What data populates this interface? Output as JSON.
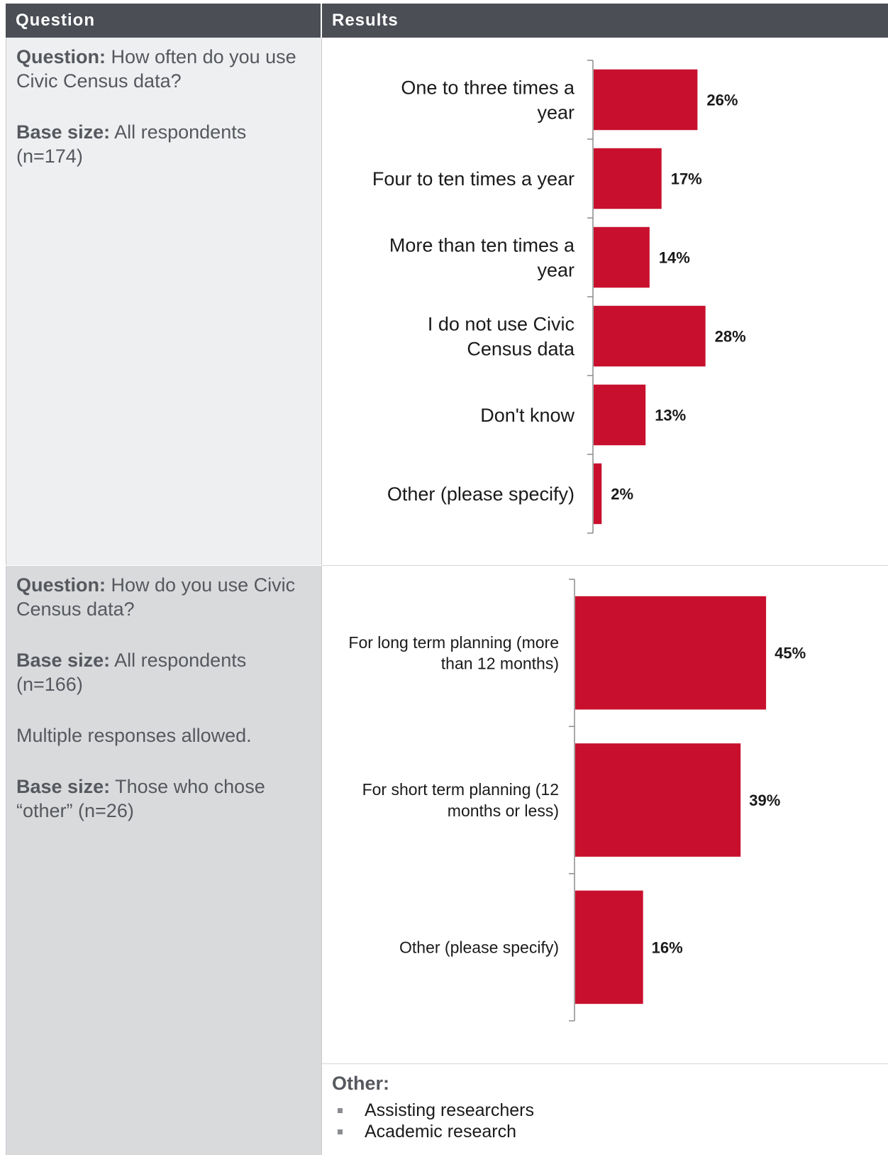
{
  "header": {
    "question_label": "Question",
    "results_label": "Results"
  },
  "rows": [
    {
      "question_prefix": "Question:",
      "question_text": "How often do you use Civic Census data?",
      "base_prefix": "Base size:",
      "base_text": "All respondents (n=174)"
    },
    {
      "question_prefix": "Question:",
      "question_text": "How do you use Civic Census data?",
      "base_prefix": "Base size:",
      "base_text": "All respondents (n=166)",
      "note": "Multiple responses allowed.",
      "base2_prefix": "Base size:",
      "base2_text": "Those who chose “other” (n=26)"
    }
  ],
  "chart_data": [
    {
      "type": "bar",
      "orientation": "horizontal",
      "categories": [
        "One to three times a year",
        "Four to ten times a year",
        "More than ten times a year",
        "I do not use Civic Census data",
        "Don't know",
        "Other (please specify)"
      ],
      "values": [
        26,
        17,
        14,
        28,
        13,
        2
      ],
      "value_labels": [
        "26%",
        "17%",
        "14%",
        "28%",
        "13%",
        "2%"
      ],
      "unit": "%",
      "color": "#c8102e"
    },
    {
      "type": "bar",
      "orientation": "horizontal",
      "categories": [
        "For long term planning (more than 12 months)",
        "For short term planning (12 months or less)",
        "Other (please specify)"
      ],
      "values": [
        45,
        39,
        16
      ],
      "value_labels": [
        "45%",
        "39%",
        "16%"
      ],
      "unit": "%",
      "color": "#c8102e"
    }
  ],
  "other": {
    "title": "Other:",
    "items": [
      "Assisting researchers",
      "Academic research"
    ]
  }
}
